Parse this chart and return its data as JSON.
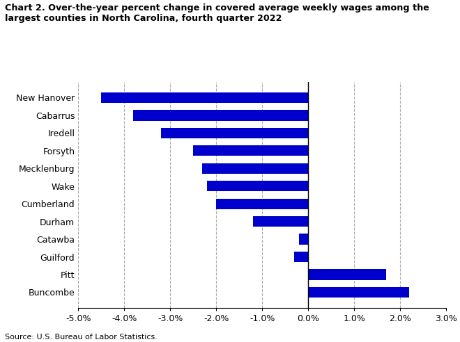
{
  "title_line1": "Chart 2. Over-the-year percent change in covered average weekly wages among the",
  "title_line2": "largest counties in North Carolina, fourth quarter 2022",
  "categories": [
    "New Hanover",
    "Cabarrus",
    "Iredell",
    "Forsyth",
    "Mecklenburg",
    "Wake",
    "Cumberland",
    "Durham",
    "Catawba",
    "Guilford",
    "Pitt",
    "Buncombe"
  ],
  "values": [
    -4.5,
    -3.8,
    -3.2,
    -2.5,
    -2.3,
    -2.2,
    -2.0,
    -1.2,
    -0.2,
    -0.3,
    1.7,
    2.2
  ],
  "bar_color": "#0000CC",
  "xlim": [
    -5.0,
    3.0
  ],
  "xticks": [
    -5.0,
    -4.0,
    -3.0,
    -2.0,
    -1.0,
    0.0,
    1.0,
    2.0,
    3.0
  ],
  "xtick_labels": [
    "-5.0%",
    "-4.0%",
    "-3.0%",
    "-2.0%",
    "-1.0%",
    "0.0%",
    "1.0%",
    "2.0%",
    "3.0%"
  ],
  "source_text": "Source: U.S. Bureau of Labor Statistics.",
  "grid_color": "#aaaaaa",
  "bar_height": 0.6
}
